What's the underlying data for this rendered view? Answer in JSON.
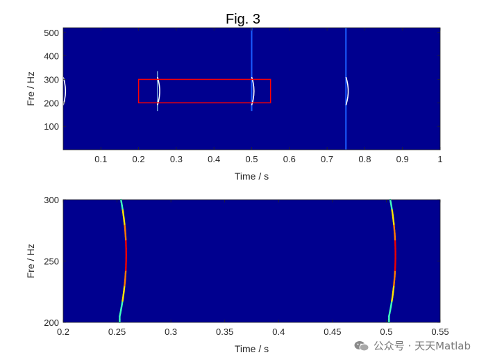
{
  "chart_data": [
    {
      "type": "heatmap",
      "title": "Fig. 3",
      "xlabel": "Time / s",
      "ylabel": "Fre / Hz",
      "xlim": [
        0,
        1
      ],
      "ylim": [
        0,
        520
      ],
      "xticks": [
        0.1,
        0.2,
        0.3,
        0.4,
        0.5,
        0.6,
        0.7,
        0.8,
        0.9,
        1
      ],
      "xtick_labels": [
        "0.1",
        "0.2",
        "0.3",
        "0.4",
        "0.5",
        "0.6",
        "0.7",
        "0.8",
        "0.9",
        "1"
      ],
      "yticks": [
        100,
        200,
        300,
        400,
        500
      ],
      "ytick_labels": [
        "100",
        "200",
        "300",
        "400",
        "500"
      ],
      "background_color": "#00008f",
      "highlight_box": {
        "x": [
          0.2,
          0.55
        ],
        "y": [
          200,
          300
        ],
        "color": "#ff0000"
      },
      "events": [
        {
          "time": 0.0,
          "chirp_center": 250,
          "chirp_half_width": 60,
          "chirp_bulge": 0.006
        },
        {
          "time": 0.25,
          "chirp_center": 250,
          "chirp_half_width": 60,
          "chirp_bulge": 0.006,
          "tail": [
            165,
            335
          ]
        },
        {
          "time": 0.5,
          "chirp_center": 250,
          "chirp_half_width": 60,
          "chirp_bulge": 0.006,
          "line": [
            165,
            520
          ]
        },
        {
          "time": 0.75,
          "chirp_center": 250,
          "chirp_half_width": 60,
          "chirp_bulge": 0.006,
          "line": [
            0,
            520
          ]
        }
      ]
    },
    {
      "type": "heatmap",
      "xlabel": "Time / s",
      "ylabel": "Fre / Hz",
      "xlim": [
        0.2,
        0.55
      ],
      "ylim": [
        200,
        300
      ],
      "xticks": [
        0.2,
        0.25,
        0.3,
        0.35,
        0.4,
        0.45,
        0.5,
        0.55
      ],
      "xtick_labels": [
        "0.2",
        "0.25",
        "0.3",
        "0.35",
        "0.4",
        "0.45",
        "0.5",
        "0.55"
      ],
      "yticks": [
        200,
        250,
        300
      ],
      "ytick_labels": [
        "200",
        "250",
        "300"
      ],
      "background_color": "#00008f",
      "ridges": [
        {
          "base_time": 0.2525,
          "peak_time": 0.2585,
          "center": 255
        },
        {
          "base_time": 0.5025,
          "peak_time": 0.5085,
          "center": 255
        }
      ]
    }
  ],
  "watermark": {
    "text": "公众号 · 天天Matlab",
    "icon": "wechat-icon"
  }
}
